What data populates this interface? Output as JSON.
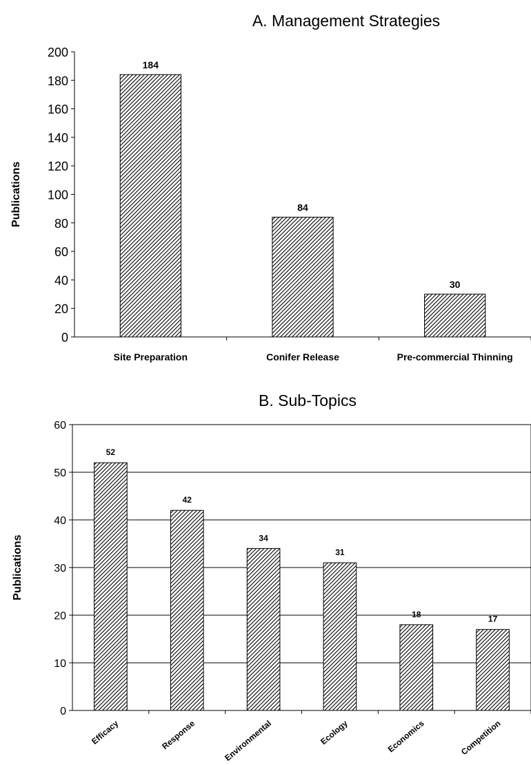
{
  "chart_data": [
    {
      "type": "bar",
      "title": "A.  Management Strategies",
      "xlabel": "",
      "ylabel": "Publications",
      "ylim": [
        0,
        200
      ],
      "yticks": [
        0,
        20,
        40,
        60,
        80,
        100,
        120,
        140,
        160,
        180,
        200
      ],
      "categories": [
        "Site Preparation",
        "Conifer Release",
        "Pre-commercial Thinning"
      ],
      "values": [
        184,
        84,
        30
      ],
      "grid": false,
      "bar_fill": "diagonal hatch"
    },
    {
      "type": "bar",
      "title": "B.  Sub-Topics",
      "xlabel": "",
      "ylabel": "Publications",
      "ylim": [
        0,
        60
      ],
      "yticks": [
        0,
        10,
        20,
        30,
        40,
        50,
        60
      ],
      "categories": [
        "Efficacy",
        "Response",
        "Environmental",
        "Ecology",
        "Economics",
        "Competition"
      ],
      "values": [
        52,
        42,
        34,
        31,
        18,
        17
      ],
      "grid": true,
      "bar_fill": "diagonal hatch"
    }
  ]
}
